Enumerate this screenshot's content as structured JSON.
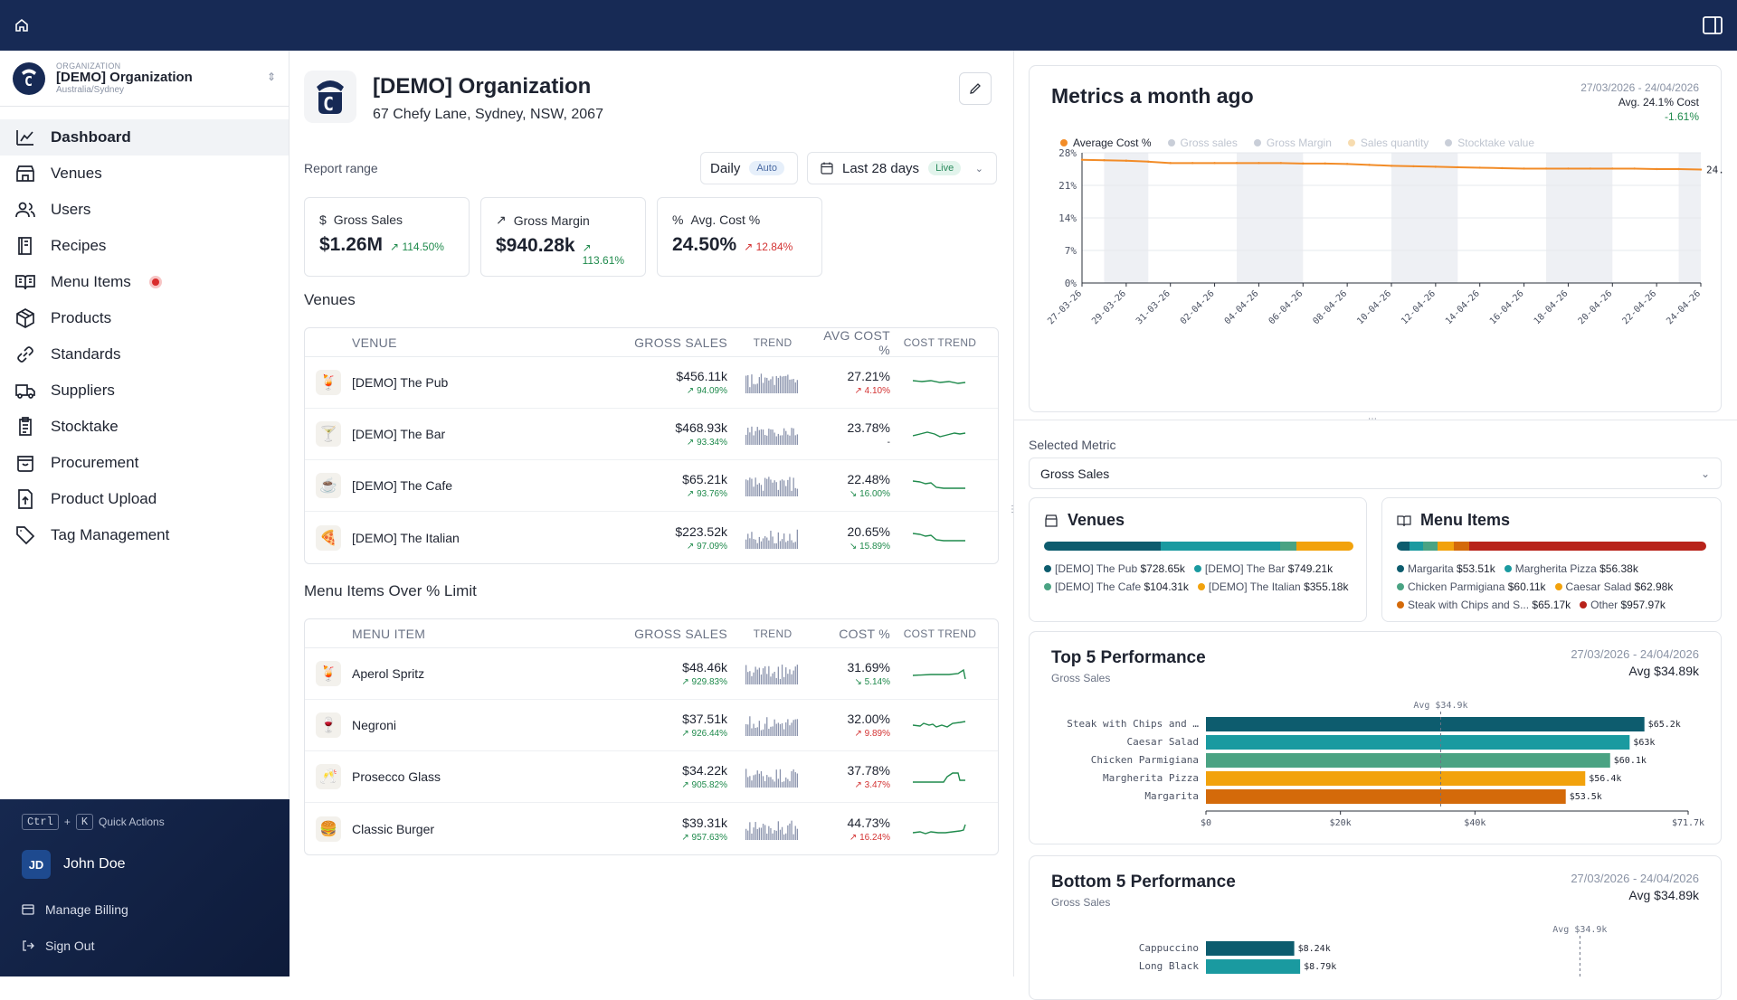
{
  "org": {
    "kicker": "ORGANIZATION",
    "name": "[DEMO] Organization",
    "timezone": "Australia/Sydney",
    "address": "67 Chefy Lane, Sydney, NSW, 2067"
  },
  "nav": [
    "Dashboard",
    "Venues",
    "Users",
    "Recipes",
    "Menu Items",
    "Products",
    "Standards",
    "Suppliers",
    "Stocktake",
    "Procurement",
    "Product Upload",
    "Tag Management"
  ],
  "footer": {
    "kbd1": "Ctrl",
    "plus": "+",
    "kbd2": "K",
    "quick": "Quick Actions",
    "initials": "JD",
    "user": "John Doe",
    "billing": "Manage Billing",
    "signout": "Sign Out"
  },
  "report": {
    "label": "Report range",
    "granularity": "Daily",
    "auto": "Auto",
    "range": "Last 28 days",
    "live": "Live"
  },
  "kpis": [
    {
      "label": "Gross Sales",
      "icon": "dollar",
      "value": "$1.26M",
      "change": "114.50%",
      "dir": "up"
    },
    {
      "label": "Gross Margin",
      "icon": "trend-up",
      "value": "$940.28k",
      "change": "113.61%",
      "dir": "up"
    },
    {
      "label": "Avg. Cost %",
      "icon": "percent",
      "value": "24.50%",
      "change": "12.84%",
      "dir": "dn"
    }
  ],
  "venues": {
    "title": "Venues",
    "headers": [
      "VENUE",
      "GROSS SALES",
      "TREND",
      "AVG COST %",
      "COST TREND"
    ],
    "rows": [
      {
        "emoji": "🍹",
        "name": "[DEMO] The Pub",
        "sales": "$456.11k",
        "sales_chg": "94.09%",
        "cost": "27.21%",
        "cost_chg": "4.10%",
        "cost_dir": "up",
        "cost_trend": "flat"
      },
      {
        "emoji": "🍸",
        "name": "[DEMO] The Bar",
        "sales": "$468.93k",
        "sales_chg": "93.34%",
        "cost": "23.78%",
        "cost_chg": "-",
        "cost_dir": "none",
        "cost_trend": "wave"
      },
      {
        "emoji": "☕",
        "name": "[DEMO] The Cafe",
        "sales": "$65.21k",
        "sales_chg": "93.76%",
        "cost": "22.48%",
        "cost_chg": "16.00%",
        "cost_dir": "down",
        "cost_trend": "drop"
      },
      {
        "emoji": "🍕",
        "name": "[DEMO] The Italian",
        "sales": "$223.52k",
        "sales_chg": "97.09%",
        "cost": "20.65%",
        "cost_chg": "15.89%",
        "cost_dir": "down",
        "cost_trend": "drop"
      }
    ]
  },
  "menu": {
    "title": "Menu Items Over % Limit",
    "headers": [
      "MENU ITEM",
      "GROSS SALES",
      "TREND",
      "COST %",
      "COST TREND"
    ],
    "rows": [
      {
        "emoji": "🍹",
        "name": "Aperol Spritz",
        "sales": "$48.46k",
        "sales_chg": "929.83%",
        "cost": "31.69%",
        "cost_chg": "5.14%",
        "cost_dir": "down",
        "cost_trend": "spike"
      },
      {
        "emoji": "🍷",
        "name": "Negroni",
        "sales": "$37.51k",
        "sales_chg": "926.44%",
        "cost": "32.00%",
        "cost_chg": "9.89%",
        "cost_dir": "up",
        "cost_trend": "wiggle"
      },
      {
        "emoji": "🥂",
        "name": "Prosecco Glass",
        "sales": "$34.22k",
        "sales_chg": "905.82%",
        "cost": "37.78%",
        "cost_chg": "3.47%",
        "cost_dir": "up",
        "cost_trend": "bump"
      },
      {
        "emoji": "🍔",
        "name": "Classic Burger",
        "sales": "$39.31k",
        "sales_chg": "957.63%",
        "cost": "44.73%",
        "cost_chg": "16.24%",
        "cost_dir": "up",
        "cost_trend": "rise"
      }
    ]
  },
  "metrics": {
    "title": "Metrics a month ago",
    "date": "27/03/2026 - 24/04/2026",
    "avg": "Avg. 24.1% Cost",
    "chg": "-1.61%",
    "legend": [
      {
        "label": "Average Cost %",
        "color": "#f28c28",
        "on": true
      },
      {
        "label": "Gross sales",
        "color": "#c9ced8",
        "on": false
      },
      {
        "label": "Gross Margin",
        "color": "#c9ced8",
        "on": false
      },
      {
        "label": "Sales quantity",
        "color": "#f7dcb0",
        "on": false
      },
      {
        "label": "Stocktake value",
        "color": "#c9ced8",
        "on": false
      }
    ],
    "end_label": "24."
  },
  "chart_data": {
    "type": "line",
    "title": "Metrics a month ago",
    "series": [
      {
        "name": "Average Cost %",
        "values": [
          26.5,
          26.4,
          26.3,
          26.1,
          25.8,
          25.8,
          25.8,
          25.8,
          25.8,
          25.8,
          25.7,
          25.7,
          25.6,
          25.4,
          25.2,
          25.1,
          25.0,
          24.9,
          24.8,
          24.7,
          24.6,
          24.6,
          24.6,
          24.6,
          24.6,
          24.6,
          24.5,
          24.5,
          24.4
        ]
      }
    ],
    "x": [
      "27-03-26",
      "28-03-26",
      "29-03-26",
      "30-03-26",
      "31-03-26",
      "01-04-26",
      "02-04-26",
      "03-04-26",
      "04-04-26",
      "05-04-26",
      "06-04-26",
      "07-04-26",
      "08-04-26",
      "09-04-26",
      "10-04-26",
      "11-04-26",
      "12-04-26",
      "13-04-26",
      "14-04-26",
      "15-04-26",
      "16-04-26",
      "17-04-26",
      "18-04-26",
      "19-04-26",
      "20-04-26",
      "21-04-26",
      "22-04-26",
      "23-04-26",
      "24-04-26"
    ],
    "x_ticks": [
      "27-03-26",
      "29-03-26",
      "31-03-26",
      "02-04-26",
      "04-04-26",
      "06-04-26",
      "08-04-26",
      "10-04-26",
      "12-04-26",
      "14-04-26",
      "16-04-26",
      "18-04-26",
      "20-04-26",
      "22-04-26",
      "24-04-26"
    ],
    "y_ticks": [
      "0%",
      "7%",
      "14%",
      "21%",
      "28%"
    ],
    "ylim": [
      0,
      28
    ]
  },
  "selected_metric": {
    "label": "Selected Metric",
    "value": "Gross Sales"
  },
  "venues_card": {
    "title": "Venues",
    "items": [
      {
        "label": "[DEMO] The Pub",
        "value": "$728.65k",
        "color": "#0d5c6e",
        "share": 0.38
      },
      {
        "label": "[DEMO] The Bar",
        "value": "$749.21k",
        "color": "#1a9aa0",
        "share": 0.39
      },
      {
        "label": "[DEMO] The Cafe",
        "value": "$104.31k",
        "color": "#4aa383",
        "share": 0.055
      },
      {
        "label": "[DEMO] The Italian",
        "value": "$355.18k",
        "color": "#f2a20c",
        "share": 0.185
      }
    ]
  },
  "menu_card": {
    "title": "Menu Items",
    "items": [
      {
        "label": "Margarita",
        "value": "$53.51k",
        "color": "#0d5c6e",
        "share": 0.042
      },
      {
        "label": "Margherita Pizza",
        "value": "$56.38k",
        "color": "#1a9aa0",
        "share": 0.044
      },
      {
        "label": "Chicken Parmigiana",
        "value": "$60.11k",
        "color": "#4aa383",
        "share": 0.047
      },
      {
        "label": "Caesar Salad",
        "value": "$62.98k",
        "color": "#f2a20c",
        "share": 0.05
      },
      {
        "label": "Steak with Chips and S...",
        "value": "$65.17k",
        "color": "#d46a0a",
        "share": 0.052
      },
      {
        "label": "Other",
        "value": "$957.97k",
        "color": "#b8231a",
        "share": 0.765
      }
    ]
  },
  "top5": {
    "title": "Top 5 Performance",
    "sub": "Gross Sales",
    "date": "27/03/2026 - 24/04/2026",
    "avg": "Avg $34.89k",
    "avg_label": "Avg $34.9k",
    "items": [
      {
        "label": "Steak with Chips and …",
        "value": 65.2,
        "text": "$65.2k",
        "color": "#0d5c6e"
      },
      {
        "label": "Caesar Salad",
        "value": 63,
        "text": "$63k",
        "color": "#1a9aa0"
      },
      {
        "label": "Chicken Parmigiana",
        "value": 60.1,
        "text": "$60.1k",
        "color": "#4aa383"
      },
      {
        "label": "Margherita Pizza",
        "value": 56.4,
        "text": "$56.4k",
        "color": "#f2a20c"
      },
      {
        "label": "Margarita",
        "value": 53.5,
        "text": "$53.5k",
        "color": "#d46a0a"
      }
    ],
    "ticks": [
      "$0",
      "$20k",
      "$40k",
      "$71.7k"
    ],
    "tick_vals": [
      0,
      20,
      40,
      71.7
    ],
    "max": 71.7,
    "avg_val": 34.9
  },
  "bottom5": {
    "title": "Bottom 5 Performance",
    "sub": "Gross Sales",
    "date": "27/03/2026 - 24/04/2026",
    "avg": "Avg $34.89k",
    "avg_label": "Avg $34.9k",
    "items": [
      {
        "label": "Cappuccino",
        "value": 8.24,
        "text": "$8.24k",
        "color": "#0d5c6e"
      },
      {
        "label": "Long Black",
        "value": 8.79,
        "text": "$8.79k",
        "color": "#1a9aa0"
      }
    ],
    "max": 45,
    "avg_val": 34.9
  }
}
